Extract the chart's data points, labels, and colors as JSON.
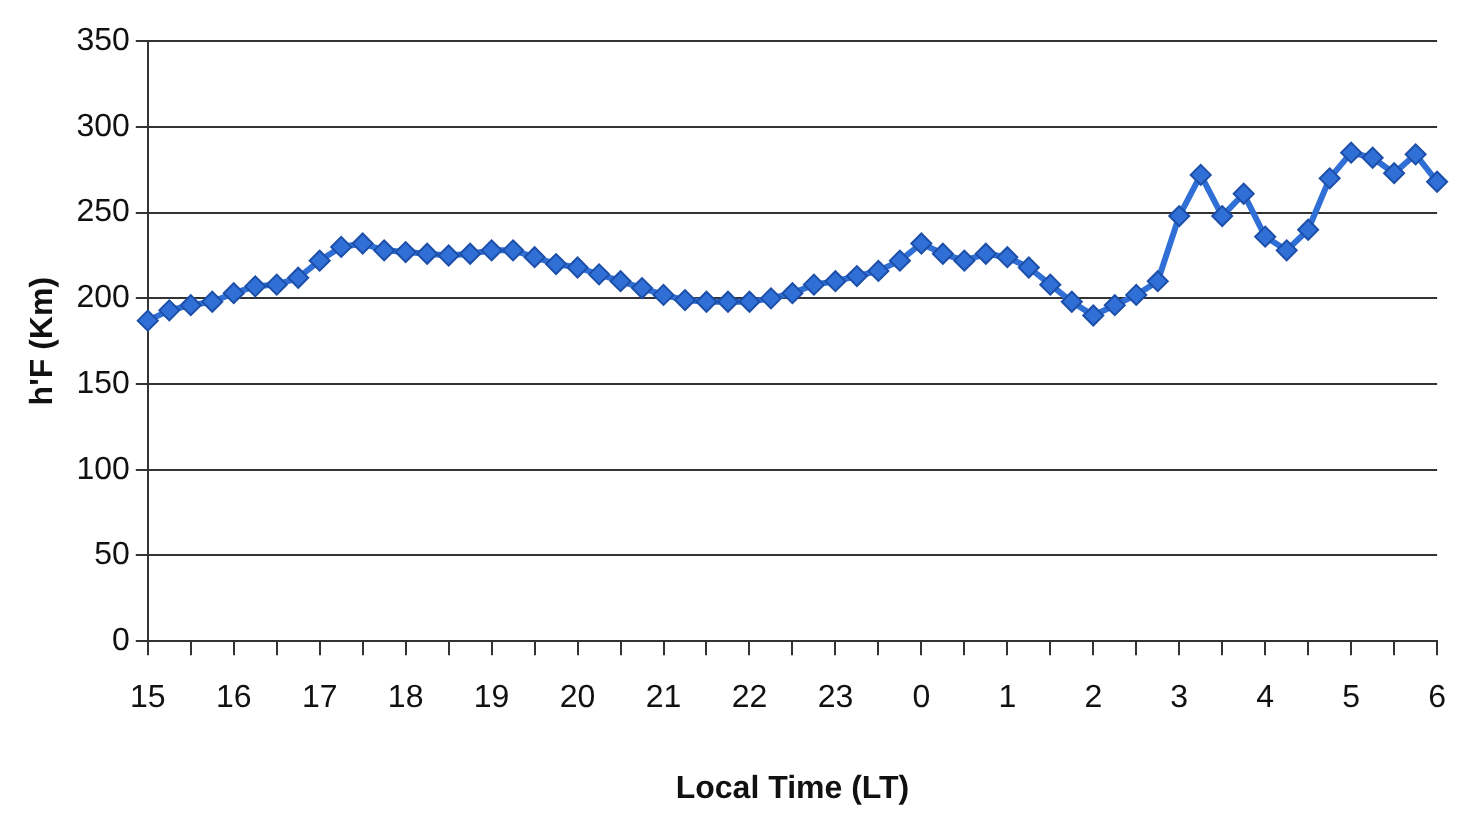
{
  "chart_data": {
    "type": "line",
    "xlabel": "Local Time (LT)",
    "ylabel": "h'F (Km)",
    "categories": [
      "15",
      null,
      null,
      null,
      "16",
      null,
      null,
      null,
      "17",
      null,
      null,
      null,
      "18",
      null,
      null,
      null,
      "19",
      null,
      null,
      null,
      "20",
      null,
      null,
      null,
      "21",
      null,
      null,
      null,
      "22",
      null,
      null,
      null,
      "23",
      null,
      null,
      null,
      "0",
      null,
      null,
      null,
      "1",
      null,
      null,
      null,
      "2",
      null,
      null,
      null,
      "3",
      null,
      null,
      null,
      "4",
      null,
      null,
      null,
      "5",
      null,
      null,
      null,
      "6"
    ],
    "series": [
      {
        "color": "#2f6fd6",
        "values": [
          187,
          193,
          196,
          198,
          203,
          207,
          208,
          212,
          222,
          230,
          232,
          228,
          227,
          226,
          225,
          226,
          228,
          228,
          224,
          220,
          218,
          214,
          210,
          206,
          202,
          199,
          198,
          198,
          198,
          200,
          203,
          208,
          210,
          213,
          216,
          222,
          232,
          226,
          222,
          226,
          224,
          218,
          208,
          198,
          190,
          196,
          202,
          210,
          248,
          272,
          248,
          261,
          236,
          228,
          240,
          270,
          285,
          282,
          273,
          284,
          268
        ]
      }
    ],
    "ylim": [
      0,
      350
    ],
    "yticks": [
      0,
      50,
      100,
      150,
      200,
      250,
      300,
      350
    ],
    "grid": "y",
    "legend": false,
    "marker": "diamond",
    "line_style": "solid"
  }
}
